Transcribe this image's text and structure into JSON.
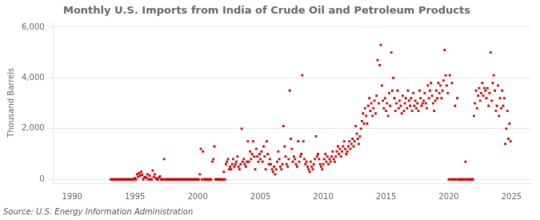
{
  "chart_data": {
    "type": "scatter",
    "title": "Monthly U.S. Imports from India of Crude Oil and Petroleum Products",
    "ylabel": "Thousand Barrels",
    "annotations": [
      "Source: U.S. Energy Information Administration"
    ],
    "color": "#cc0000",
    "marker": "square",
    "grid": "y",
    "xlim": [
      1988.5,
      2026.5
    ],
    "xticks": [
      1990,
      1995,
      2000,
      2005,
      2010,
      2015,
      2020,
      2025
    ],
    "ylim": [
      -150,
      6200
    ],
    "yticks": [
      0,
      {
        "value": 2000,
        "label": "2,000"
      },
      {
        "value": 4000,
        "label": "4,000"
      },
      {
        "value": 6000,
        "label": "6,000"
      }
    ],
    "x": [
      1993.08,
      1993.17,
      1993.25,
      1993.33,
      1993.42,
      1993.5,
      1993.58,
      1993.67,
      1993.75,
      1993.83,
      1993.92,
      1994.0,
      1994.08,
      1994.17,
      1994.25,
      1994.33,
      1994.42,
      1994.5,
      1994.58,
      1994.67,
      1994.75,
      1994.83,
      1994.92,
      1995.0,
      1995.08,
      1995.17,
      1995.25,
      1995.33,
      1995.42,
      1995.5,
      1995.58,
      1995.67,
      1995.75,
      1995.83,
      1995.92,
      1996.0,
      1996.08,
      1996.17,
      1996.25,
      1996.33,
      1996.42,
      1996.5,
      1996.58,
      1996.67,
      1996.75,
      1996.83,
      1996.92,
      1997.0,
      1997.08,
      1997.17,
      1997.25,
      1997.33,
      1997.42,
      1997.5,
      1997.58,
      1997.67,
      1997.75,
      1997.83,
      1997.92,
      1998.0,
      1998.08,
      1998.17,
      1998.25,
      1998.33,
      1998.42,
      1998.5,
      1998.58,
      1998.67,
      1998.75,
      1998.83,
      1998.92,
      1999.0,
      1999.08,
      1999.17,
      1999.25,
      1999.33,
      1999.42,
      1999.5,
      1999.58,
      1999.67,
      1999.75,
      1999.83,
      1999.92,
      2000.0,
      2000.08,
      2000.17,
      2000.25,
      2000.33,
      2000.42,
      2000.5,
      2000.58,
      2000.67,
      2000.75,
      2000.83,
      2000.92,
      2001.0,
      2001.08,
      2001.17,
      2001.25,
      2001.33,
      2001.42,
      2001.5,
      2001.58,
      2001.67,
      2001.75,
      2001.83,
      2001.92,
      2002.0,
      2002.08,
      2002.17,
      2002.25,
      2002.33,
      2002.42,
      2002.5,
      2002.58,
      2002.67,
      2002.75,
      2002.83,
      2002.92,
      2003.0,
      2003.08,
      2003.17,
      2003.25,
      2003.33,
      2003.42,
      2003.5,
      2003.58,
      2003.67,
      2003.75,
      2003.83,
      2003.92,
      2004.0,
      2004.08,
      2004.17,
      2004.25,
      2004.33,
      2004.42,
      2004.5,
      2004.58,
      2004.67,
      2004.75,
      2004.83,
      2004.92,
      2005.0,
      2005.08,
      2005.17,
      2005.25,
      2005.33,
      2005.42,
      2005.5,
      2005.58,
      2005.67,
      2005.75,
      2005.83,
      2005.92,
      2006.0,
      2006.08,
      2006.17,
      2006.25,
      2006.33,
      2006.42,
      2006.5,
      2006.58,
      2006.67,
      2006.75,
      2006.83,
      2006.92,
      2007.0,
      2007.08,
      2007.17,
      2007.25,
      2007.33,
      2007.42,
      2007.5,
      2007.58,
      2007.67,
      2007.75,
      2007.83,
      2007.92,
      2008.0,
      2008.08,
      2008.17,
      2008.25,
      2008.33,
      2008.42,
      2008.5,
      2008.58,
      2008.67,
      2008.75,
      2008.83,
      2008.92,
      2009.0,
      2009.08,
      2009.17,
      2009.25,
      2009.33,
      2009.42,
      2009.5,
      2009.58,
      2009.67,
      2009.75,
      2009.83,
      2009.92,
      2010.0,
      2010.08,
      2010.17,
      2010.25,
      2010.33,
      2010.42,
      2010.5,
      2010.58,
      2010.67,
      2010.75,
      2010.83,
      2010.92,
      2011.0,
      2011.08,
      2011.17,
      2011.25,
      2011.33,
      2011.42,
      2011.5,
      2011.58,
      2011.67,
      2011.75,
      2011.83,
      2011.92,
      2012.0,
      2012.08,
      2012.17,
      2012.25,
      2012.33,
      2012.42,
      2012.5,
      2012.58,
      2012.67,
      2012.75,
      2012.83,
      2012.92,
      2013.0,
      2013.08,
      2013.17,
      2013.25,
      2013.33,
      2013.42,
      2013.5,
      2013.58,
      2013.67,
      2013.75,
      2013.83,
      2013.92,
      2014.0,
      2014.08,
      2014.17,
      2014.25,
      2014.33,
      2014.42,
      2014.5,
      2014.58,
      2014.67,
      2014.75,
      2014.83,
      2014.92,
      2015.0,
      2015.08,
      2015.17,
      2015.25,
      2015.33,
      2015.42,
      2015.5,
      2015.58,
      2015.67,
      2015.75,
      2015.83,
      2015.92,
      2016.0,
      2016.08,
      2016.17,
      2016.25,
      2016.33,
      2016.42,
      2016.5,
      2016.58,
      2016.67,
      2016.75,
      2016.83,
      2016.92,
      2017.0,
      2017.08,
      2017.17,
      2017.25,
      2017.33,
      2017.42,
      2017.5,
      2017.58,
      2017.67,
      2017.75,
      2017.83,
      2017.92,
      2018.0,
      2018.08,
      2018.17,
      2018.25,
      2018.33,
      2018.42,
      2018.5,
      2018.58,
      2018.67,
      2018.75,
      2018.83,
      2018.92,
      2019.0,
      2019.08,
      2019.17,
      2019.25,
      2019.33,
      2019.42,
      2019.5,
      2019.58,
      2019.67,
      2019.75,
      2019.83,
      2019.92,
      2020.0,
      2020.08,
      2020.17,
      2020.25,
      2020.33,
      2020.42,
      2020.5,
      2020.58,
      2020.67,
      2020.75,
      2020.83,
      2020.92,
      2021.0,
      2021.08,
      2021.17,
      2021.25,
      2021.33,
      2021.42,
      2021.5,
      2021.58,
      2021.67,
      2021.75,
      2021.83,
      2021.92,
      2022.0,
      2022.08,
      2022.17,
      2022.25,
      2022.33,
      2022.42,
      2022.5,
      2022.58,
      2022.67,
      2022.75,
      2022.83,
      2022.92,
      2023.0,
      2023.08,
      2023.17,
      2023.25,
      2023.33,
      2023.42,
      2023.5,
      2023.58,
      2023.67,
      2023.75,
      2023.83,
      2023.92,
      2024.0,
      2024.08,
      2024.17,
      2024.25,
      2024.33,
      2024.42,
      2024.5,
      2024.58,
      2024.67,
      2024.75,
      2024.83,
      2024.92
    ],
    "values": [
      0,
      0,
      0,
      0,
      0,
      0,
      0,
      0,
      0,
      0,
      0,
      0,
      0,
      0,
      0,
      0,
      0,
      0,
      0,
      0,
      0,
      0,
      0,
      50,
      0,
      200,
      100,
      250,
      150,
      300,
      180,
      0,
      80,
      100,
      60,
      200,
      0,
      150,
      0,
      0,
      350,
      100,
      200,
      50,
      0,
      0,
      80,
      120,
      0,
      0,
      0,
      800,
      0,
      0,
      0,
      0,
      0,
      0,
      0,
      0,
      0,
      0,
      0,
      0,
      0,
      0,
      0,
      0,
      0,
      0,
      0,
      0,
      0,
      0,
      0,
      0,
      0,
      0,
      0,
      0,
      0,
      0,
      0,
      0,
      0,
      200,
      1200,
      0,
      1100,
      0,
      0,
      0,
      0,
      0,
      0,
      0,
      0,
      700,
      800,
      1300,
      0,
      0,
      0,
      0,
      0,
      0,
      0,
      0,
      300,
      0,
      600,
      700,
      800,
      400,
      500,
      400,
      600,
      800,
      500,
      600,
      700,
      900,
      500,
      400,
      600,
      2000,
      700,
      800,
      600,
      500,
      700,
      1500,
      700,
      1100,
      800,
      1000,
      1500,
      900,
      400,
      1200,
      900,
      700,
      1000,
      800,
      1100,
      700,
      1300,
      900,
      400,
      1500,
      1000,
      600,
      800,
      600,
      400,
      300,
      500,
      200,
      400,
      700,
      1100,
      800,
      500,
      400,
      600,
      2100,
      1300,
      900,
      600,
      500,
      800,
      3500,
      1600,
      1200,
      700,
      900,
      800,
      600,
      500,
      1500,
      700,
      900,
      1000,
      4100,
      1500,
      800,
      600,
      700,
      500,
      400,
      300,
      700,
      500,
      400,
      600,
      800,
      1700,
      900,
      1000,
      800,
      600,
      500,
      400,
      600,
      800,
      1000,
      700,
      900,
      600,
      800,
      700,
      900,
      1100,
      800,
      700,
      900,
      1100,
      1300,
      1000,
      1200,
      900,
      1100,
      1300,
      1500,
      1200,
      1000,
      1100,
      1300,
      1500,
      1200,
      1400,
      1600,
      1300,
      1500,
      2100,
      1800,
      1600,
      1400,
      1700,
      2000,
      2300,
      2600,
      2200,
      2800,
      2500,
      2200,
      2900,
      3200,
      2700,
      3000,
      2500,
      2800,
      3100,
      2600,
      3300,
      4700,
      3000,
      4500,
      5300,
      3700,
      3100,
      2800,
      3200,
      2700,
      3000,
      2500,
      3400,
      2900,
      5000,
      3500,
      4000,
      3200,
      2700,
      3000,
      3500,
      2800,
      3100,
      2900,
      2600,
      3300,
      2700,
      3000,
      3200,
      2800,
      3500,
      3100,
      2900,
      3200,
      2700,
      3400,
      2900,
      3100,
      2800,
      3000,
      2700,
      3500,
      3200,
      2900,
      3000,
      3100,
      3400,
      3000,
      2800,
      3700,
      3200,
      3500,
      3800,
      3300,
      3000,
      2700,
      3100,
      3500,
      3200,
      3800,
      3400,
      3700,
      3200,
      3500,
      3900,
      5100,
      4100,
      3700,
      3400,
      0,
      4100,
      0,
      3800,
      0,
      0,
      2900,
      0,
      3200,
      0,
      0,
      0,
      0,
      0,
      0,
      0,
      700,
      0,
      0,
      0,
      0,
      0,
      0,
      0,
      2500,
      3000,
      3500,
      2800,
      3300,
      3600,
      3100,
      3400,
      3800,
      3300,
      3600,
      3500,
      3200,
      3600,
      2900,
      3400,
      5000,
      3100,
      3800,
      4100,
      3500,
      2700,
      2900,
      3700,
      2500,
      3200,
      2800,
      3500,
      2900,
      3200,
      1400,
      2000,
      2700,
      1600,
      2200,
      1500
    ]
  }
}
